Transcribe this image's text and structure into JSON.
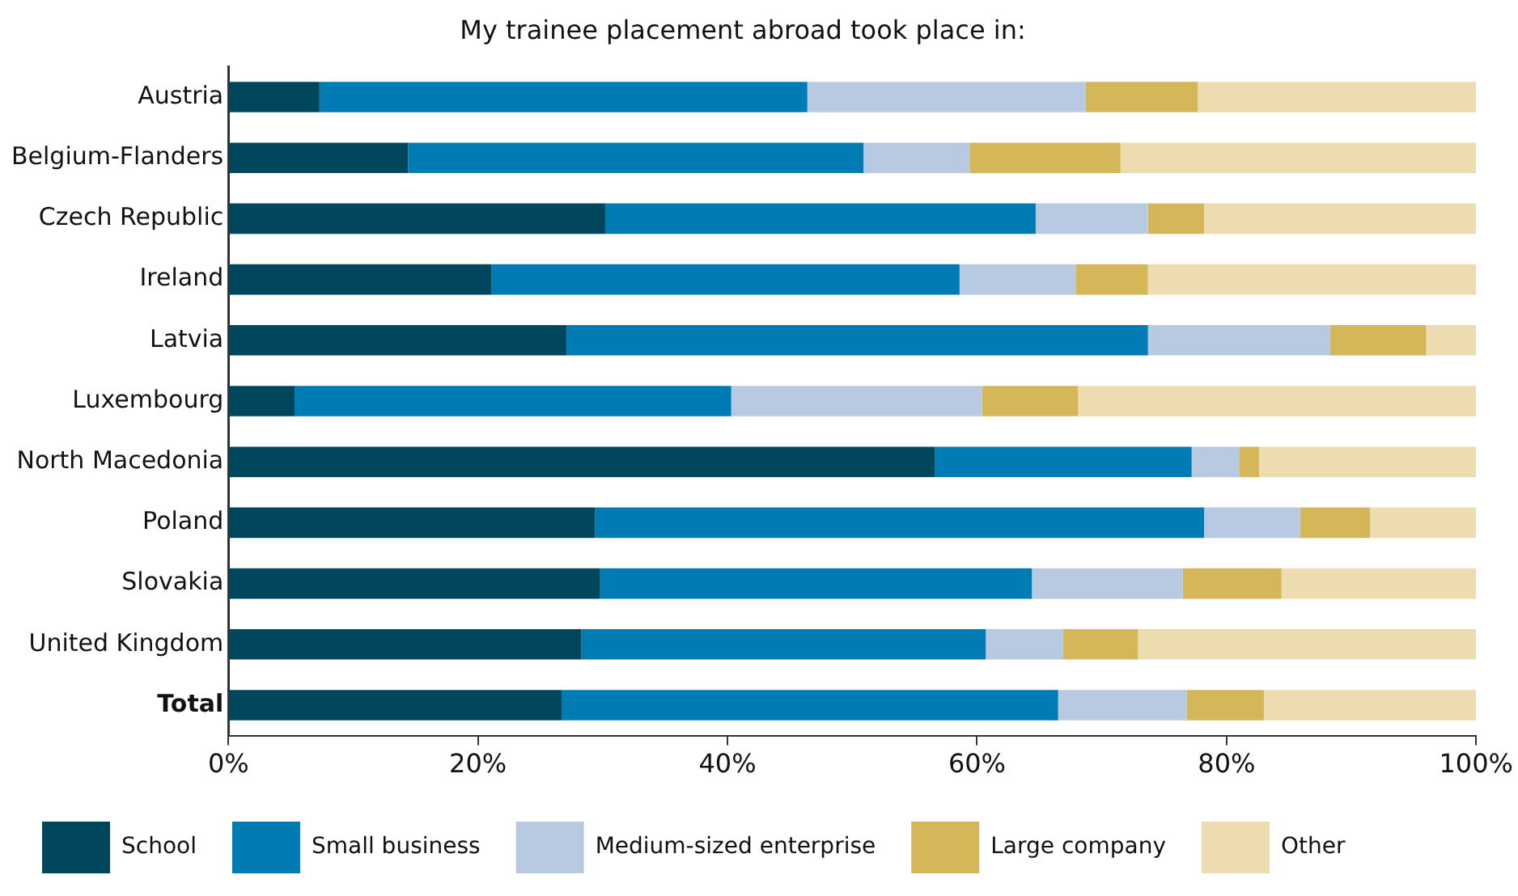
{
  "chart_data": {
    "type": "bar",
    "orientation": "horizontal",
    "stacked": true,
    "title": "My trainee placement abroad took place in:",
    "categories": [
      "Austria",
      "Belgium-Flanders",
      "Czech Republic",
      "Ireland",
      "Latvia",
      "Luxembourg",
      "North Macedonia",
      "Poland",
      "Slovakia",
      "United Kingdom",
      "Total"
    ],
    "series": [
      {
        "name": "School",
        "color": "#00475e",
        "values": [
          7.3,
          14.4,
          30.2,
          21.1,
          27.1,
          5.3,
          56.6,
          29.4,
          29.8,
          28.3,
          26.7
        ]
      },
      {
        "name": "Small business",
        "color": "#007bb3",
        "values": [
          39.1,
          36.5,
          34.5,
          37.5,
          46.6,
          35.0,
          20.6,
          48.8,
          34.6,
          32.4,
          39.8
        ]
      },
      {
        "name": "Medium-sized enterprise",
        "color": "#b8cae2",
        "values": [
          22.3,
          8.5,
          9.0,
          9.3,
          14.6,
          20.1,
          3.8,
          7.7,
          12.1,
          6.2,
          10.3
        ]
      },
      {
        "name": "Large company",
        "color": "#d5b658",
        "values": [
          9.0,
          12.1,
          4.5,
          5.8,
          7.7,
          7.7,
          1.6,
          5.6,
          7.9,
          6.0,
          6.2
        ]
      },
      {
        "name": "Other",
        "color": "#eddcb0",
        "values": [
          22.3,
          28.5,
          21.8,
          26.3,
          4.0,
          31.9,
          17.4,
          8.5,
          15.6,
          27.1,
          17.0
        ]
      }
    ],
    "xlim": [
      0,
      100
    ],
    "xticks": [
      {
        "value": 0,
        "label": "0%"
      },
      {
        "value": 20,
        "label": "20%"
      },
      {
        "value": 40,
        "label": "40%"
      },
      {
        "value": 60,
        "label": "60%"
      },
      {
        "value": 80,
        "label": "80%"
      },
      {
        "value": 100,
        "label": "100%"
      }
    ],
    "grid": false,
    "legend": "bottom"
  }
}
